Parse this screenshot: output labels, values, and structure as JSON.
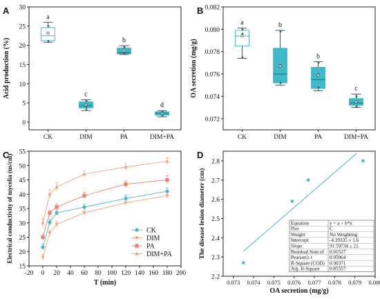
{
  "colors": {
    "accent": "#3fb8c8",
    "red": "#f07860",
    "line_cyan": "#45b5d1",
    "frame": "#222222"
  },
  "chart_data": [
    {
      "id": "A",
      "panel_label": "A",
      "type": "box",
      "ylabel": "Acid production (%)",
      "xlabel": "",
      "ylim": [
        -2,
        30
      ],
      "yticks": [
        0,
        5,
        10,
        15,
        20,
        25,
        30
      ],
      "categories": [
        "CK",
        "DIM",
        "PA",
        "DIM+PA"
      ],
      "boxes": [
        {
          "category": "CK",
          "min": 20.8,
          "q1": 21.2,
          "median": 22.5,
          "q3": 24.6,
          "max": 26.0,
          "mean": 23.2,
          "points": [
            25.0,
            23.2,
            21.1,
            20.9
          ],
          "filled": false,
          "letter": "a"
        },
        {
          "category": "DIM",
          "min": 3.0,
          "q1": 3.7,
          "median": 4.3,
          "q3": 5.3,
          "max": 5.8,
          "mean": 4.5,
          "points": [
            5.5,
            4.6,
            3.9,
            3.2
          ],
          "filled": true,
          "letter": "c"
        },
        {
          "category": "PA",
          "min": 17.6,
          "q1": 17.8,
          "median": 18.1,
          "q3": 19.3,
          "max": 19.9,
          "mean": 18.6,
          "points": [
            19.5,
            18.5,
            17.9
          ],
          "filled": true,
          "letter": "b"
        },
        {
          "category": "DIM+PA",
          "min": 1.4,
          "q1": 1.8,
          "median": 2.3,
          "q3": 2.7,
          "max": 3.0,
          "mean": 2.3,
          "points": [
            2.8,
            2.3,
            1.6
          ],
          "filled": true,
          "letter": "d"
        }
      ]
    },
    {
      "id": "B",
      "panel_label": "B",
      "type": "box",
      "ylabel": "OA secretion (mg/g)",
      "xlabel": "",
      "ylim": [
        0.071,
        0.082
      ],
      "yticks": [
        0.072,
        0.074,
        0.076,
        0.078,
        0.08,
        0.082
      ],
      "tick_labels": [
        "0.072",
        "0.074",
        "0.076",
        "0.078",
        "0.080",
        "0.082"
      ],
      "categories": [
        "CK",
        "DIM",
        "PA",
        "DIM+PA"
      ],
      "boxes": [
        {
          "category": "CK",
          "min": 0.0774,
          "q1": 0.0785,
          "median": 0.0794,
          "q3": 0.0799,
          "max": 0.0801,
          "mean": 0.0794,
          "points": [
            0.08,
            0.0796,
            0.0775
          ],
          "filled": false,
          "letter": "a"
        },
        {
          "category": "DIM",
          "min": 0.075,
          "q1": 0.0752,
          "median": 0.076,
          "q3": 0.0783,
          "max": 0.0799,
          "mean": 0.0767,
          "points": [
            0.0798,
            0.0768,
            0.0752
          ],
          "filled": true,
          "letter": "b"
        },
        {
          "category": "PA",
          "min": 0.0745,
          "q1": 0.0747,
          "median": 0.0755,
          "q3": 0.0766,
          "max": 0.0771,
          "mean": 0.0759,
          "points": [
            0.077,
            0.076,
            0.0748
          ],
          "filled": true,
          "letter": "b"
        },
        {
          "category": "DIM+PA",
          "min": 0.073,
          "q1": 0.0732,
          "median": 0.0734,
          "q3": 0.0738,
          "max": 0.0742,
          "mean": 0.0735,
          "points": [
            0.074,
            0.0735,
            0.0731
          ],
          "filled": true,
          "letter": "c"
        }
      ]
    },
    {
      "id": "C",
      "panel_label": "C",
      "type": "line",
      "ylabel": "Electrical conductivity of mycelia (us/cm)",
      "xlabel": "T (min)",
      "xlim": [
        -20,
        200
      ],
      "xticks": [
        -20,
        0,
        20,
        40,
        60,
        80,
        100,
        120,
        140,
        160,
        180,
        200
      ],
      "ylim": [
        15,
        55
      ],
      "yticks": [
        15,
        20,
        25,
        30,
        35,
        40,
        45,
        50,
        55
      ],
      "x": [
        0,
        10,
        20,
        60,
        120,
        180
      ],
      "legend_position": "lower-right",
      "series": [
        {
          "name": "CK",
          "values": [
            21.5,
            30.2,
            33.5,
            35.5,
            38.5,
            41.0
          ],
          "color": "#45b5d1",
          "marker": "circle",
          "errors": [
            1.0,
            1.0,
            1.0,
            1.0,
            1.2,
            1.2
          ]
        },
        {
          "name": "DIM",
          "values": [
            18.0,
            26.5,
            29.5,
            33.5,
            37.0,
            39.5
          ],
          "color": "#f4a07a",
          "marker": "triangle-down",
          "errors": [
            1.0,
            1.0,
            1.0,
            1.0,
            1.0,
            1.0
          ]
        },
        {
          "name": "PA",
          "values": [
            25.0,
            33.5,
            35.5,
            39.5,
            43.5,
            45.0
          ],
          "color": "#ef7f6b",
          "marker": "square",
          "errors": [
            1.0,
            1.0,
            1.2,
            1.2,
            1.2,
            1.5
          ]
        },
        {
          "name": "DIM+PA",
          "values": [
            30.0,
            40.0,
            42.5,
            47.0,
            49.5,
            51.5
          ],
          "color": "#f4a07a",
          "marker": "triangle-up",
          "errors": [
            1.5,
            1.5,
            1.5,
            1.2,
            1.2,
            1.2
          ]
        }
      ]
    },
    {
      "id": "D",
      "panel_label": "D",
      "type": "scatter",
      "ylabel": "The disease lesion diameter (cm)",
      "xlabel": "OA secretion (mg/g)",
      "xlim": [
        0.0725,
        0.08
      ],
      "xticks": [
        0.073,
        0.074,
        0.075,
        0.076,
        0.077,
        0.078,
        0.079,
        0.08
      ],
      "xtick_labels": [
        "0.073",
        "0.074",
        "0.075",
        "0.076",
        "0.077",
        "0.078",
        "0.079",
        "0.080"
      ],
      "ylim": [
        2.2,
        2.85
      ],
      "yticks": [
        2.2,
        2.3,
        2.4,
        2.5,
        2.6,
        2.7,
        2.8
      ],
      "ytick_labels": [
        "2.2",
        "2.3",
        "2.4",
        "2.5",
        "2.6",
        "2.7",
        "2.8"
      ],
      "points": [
        {
          "x": 0.0735,
          "y": 2.27
        },
        {
          "x": 0.0759,
          "y": 2.59
        },
        {
          "x": 0.0767,
          "y": 2.7
        },
        {
          "x": 0.0794,
          "y": 2.8
        }
      ],
      "fit_line": {
        "x": [
          0.0735,
          0.0791
        ],
        "y": [
          2.33,
          2.84
        ]
      },
      "stats_table": [
        [
          "Equation",
          "y = a + b*x"
        ],
        [
          "Plot",
          "C"
        ],
        [
          "Weight",
          "No Weighting"
        ],
        [
          "Intercept",
          "-4.39335 ± 1.6"
        ],
        [
          "Slope",
          "91.59734 ± 21."
        ],
        [
          "Residual Sum of",
          "0.01527"
        ],
        [
          "Pearson's r",
          "0.95064"
        ],
        [
          "R-Square (COD)",
          "0.90371"
        ],
        [
          "Adj. R-Square",
          "0.85557"
        ]
      ]
    }
  ]
}
